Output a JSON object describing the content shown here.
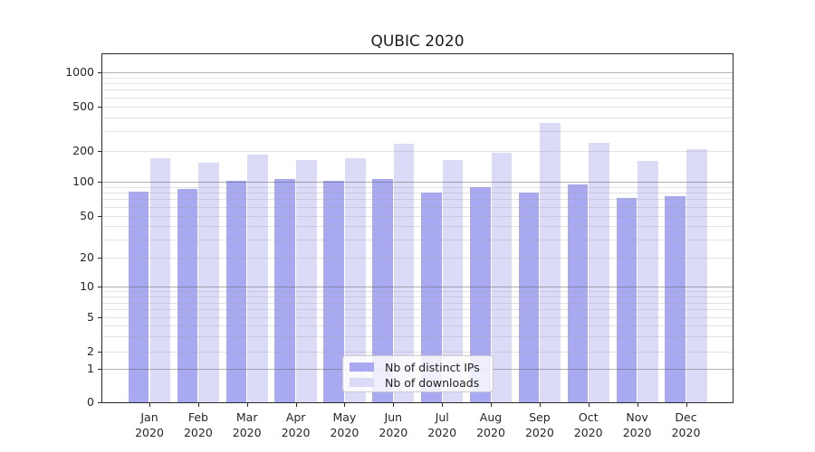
{
  "chart_data": {
    "type": "bar",
    "title": "QUBIC 2020",
    "categories": [
      "Jan",
      "Feb",
      "Mar",
      "Apr",
      "May",
      "Jun",
      "Jul",
      "Aug",
      "Sep",
      "Oct",
      "Nov",
      "Dec"
    ],
    "category_year": "2020",
    "series": [
      {
        "name": "Nb of distinct IPs",
        "color": "#a9a9f1",
        "values": [
          82,
          87,
          102,
          107,
          102,
          107,
          80,
          90,
          80,
          95,
          72,
          75
        ]
      },
      {
        "name": "Nb of downloads",
        "color": "#dbdbf8",
        "values": [
          168,
          152,
          185,
          163,
          170,
          230,
          163,
          190,
          355,
          235,
          159,
          205
        ]
      }
    ],
    "yticks": [
      0,
      1,
      2,
      5,
      10,
      20,
      50,
      100,
      200,
      500,
      1000
    ],
    "y_scale": "symlog",
    "ylim": [
      0,
      1450
    ],
    "grid": "major-and-minor, drawn over bars",
    "legend_position": "lower-center"
  }
}
